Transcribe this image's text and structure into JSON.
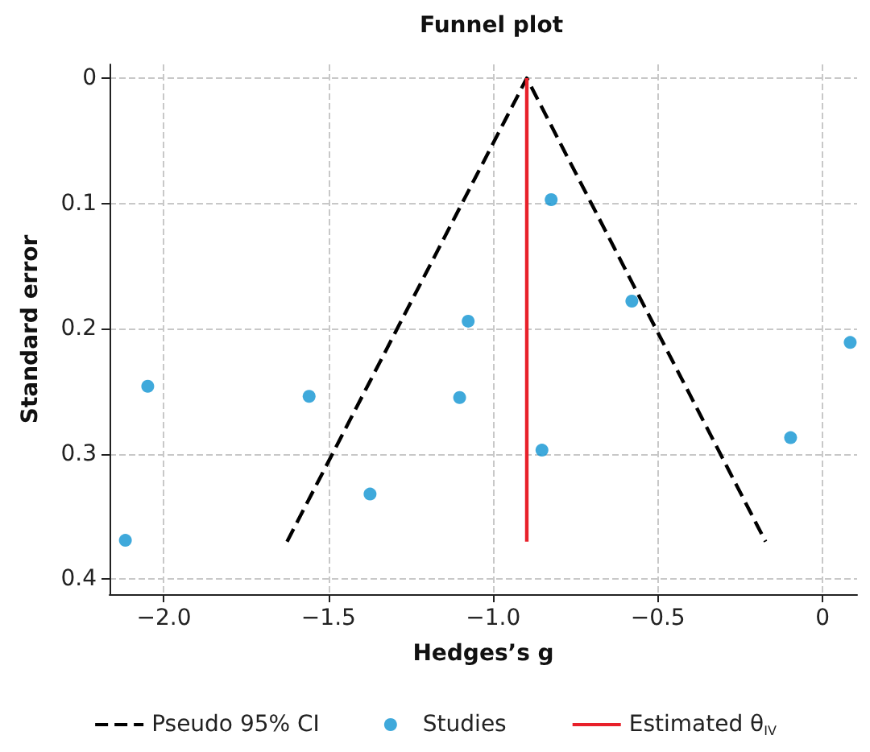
{
  "chart_data": {
    "type": "scatter",
    "title": "Funnel plot",
    "xlabel": "Hedges’s g",
    "ylabel": "Standard error",
    "xlim": [
      -2.165,
      0.105
    ],
    "ylim": [
      0.412,
      -0.011
    ],
    "xticks": [
      {
        "value": -2,
        "label": "−2.0"
      },
      {
        "value": -1.5,
        "label": "−1.5"
      },
      {
        "value": -1,
        "label": "−1.0"
      },
      {
        "value": -0.5,
        "label": "−0.5"
      },
      0
    ],
    "yticks": [
      0,
      0.1,
      0.2,
      0.3,
      0.4
    ],
    "grid": true,
    "legend": "bottom",
    "series": [
      {
        "name": "Pseudo 95% CI",
        "type": "line",
        "line_style": "dashed",
        "marker": "none",
        "color": "#000000",
        "x": [
          -1.626,
          -0.898,
          -0.173
        ],
        "values": [
          0.37,
          0,
          0.37
        ]
      },
      {
        "name": "Studies",
        "marker": "circle",
        "color": "#0f93d2",
        "x": [
          -2.117,
          -2.049,
          -1.559,
          -1.374,
          -1.102,
          -1.076,
          -0.824,
          -0.852,
          -0.579,
          -0.097,
          0.084
        ],
        "values": [
          0.369,
          0.246,
          0.254,
          0.332,
          0.255,
          0.194,
          0.097,
          0.297,
          0.178,
          0.287,
          0.211
        ]
      },
      {
        "name": "Estimated θ$_{IV}$",
        "type": "line",
        "line_style": "solid",
        "marker": "none",
        "color": "#e8202a",
        "x": [
          -0.898,
          -0.898
        ],
        "values": [
          0,
          0.37
        ]
      }
    ]
  }
}
